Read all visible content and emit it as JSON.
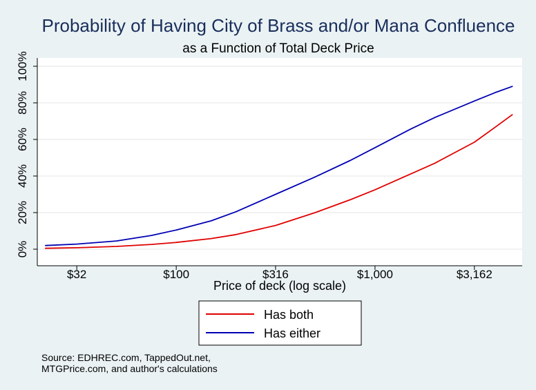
{
  "chart_data": {
    "type": "line",
    "title": "Probability of Having City of Brass and/or Mana Confluence",
    "subtitle": "as a Function of Total Deck Price",
    "xlabel": "Price of deck (log scale)",
    "ylabel": "",
    "x_scale": "log",
    "xlim": [
      20,
      5500
    ],
    "ylim": [
      0,
      1.05
    ],
    "x_ticks": [
      {
        "value": 31.6,
        "label": "$32"
      },
      {
        "value": 100,
        "label": "$100"
      },
      {
        "value": 316,
        "label": "$316"
      },
      {
        "value": 1000,
        "label": "$1,000"
      },
      {
        "value": 3162,
        "label": "$3,162"
      }
    ],
    "y_ticks": [
      {
        "value": 0,
        "label": "0%"
      },
      {
        "value": 0.2,
        "label": "20%"
      },
      {
        "value": 0.4,
        "label": "40%"
      },
      {
        "value": 0.6,
        "label": "60%"
      },
      {
        "value": 0.8,
        "label": "80%"
      },
      {
        "value": 1.0,
        "label": "100%"
      }
    ],
    "grid": true,
    "legend_position": "bottom",
    "x": [
      22,
      31.6,
      50,
      75,
      100,
      150,
      200,
      316,
      500,
      750,
      1000,
      1500,
      2000,
      3162,
      4000,
      4900
    ],
    "series": [
      {
        "name": "Has both",
        "color": "#e00000",
        "values": [
          0.005,
          0.008,
          0.015,
          0.026,
          0.037,
          0.058,
          0.08,
          0.13,
          0.2,
          0.27,
          0.325,
          0.41,
          0.47,
          0.585,
          0.665,
          0.735
        ]
      },
      {
        "name": "Has either",
        "color": "#0000b3",
        "values": [
          0.02,
          0.028,
          0.045,
          0.075,
          0.105,
          0.155,
          0.205,
          0.3,
          0.395,
          0.485,
          0.555,
          0.655,
          0.72,
          0.81,
          0.855,
          0.89
        ]
      }
    ]
  },
  "source_note": {
    "line1": "Source: EDHREC.com, TappedOut.net,",
    "line2": "MTGPrice.com, and author's calculations"
  },
  "colors": {
    "background": "#eaf2f3",
    "plot_background": "#ffffff",
    "title": "#1a2e5c"
  }
}
